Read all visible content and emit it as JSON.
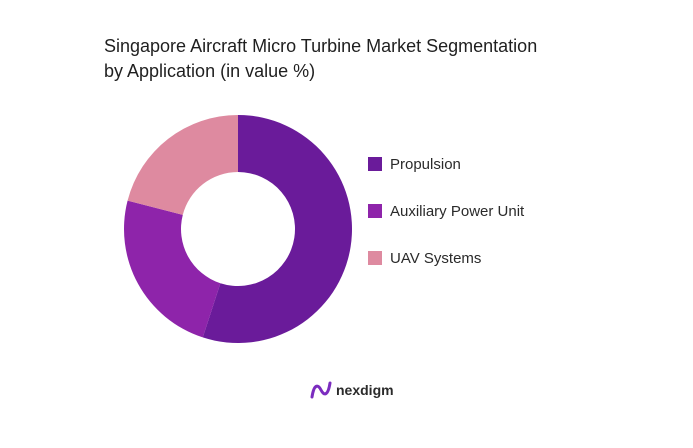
{
  "title_lines": [
    "Singapore Aircraft Micro Turbine Market Segmentation",
    "by Application (in value %)"
  ],
  "brand": {
    "name": "nexdigm",
    "logo_icon": "nexdigm-logo-icon"
  },
  "chart_data": {
    "type": "pie",
    "variant": "donut",
    "title": "Singapore Aircraft Micro Turbine Market Segmentation by Application (in value %)",
    "categories": [
      "Propulsion",
      "Auxiliary Power Unit",
      "UAV Systems"
    ],
    "values": [
      55,
      24,
      21
    ],
    "colors": [
      "#6a1b9a",
      "#8e24aa",
      "#de8aa0"
    ],
    "legend_position": "right"
  }
}
